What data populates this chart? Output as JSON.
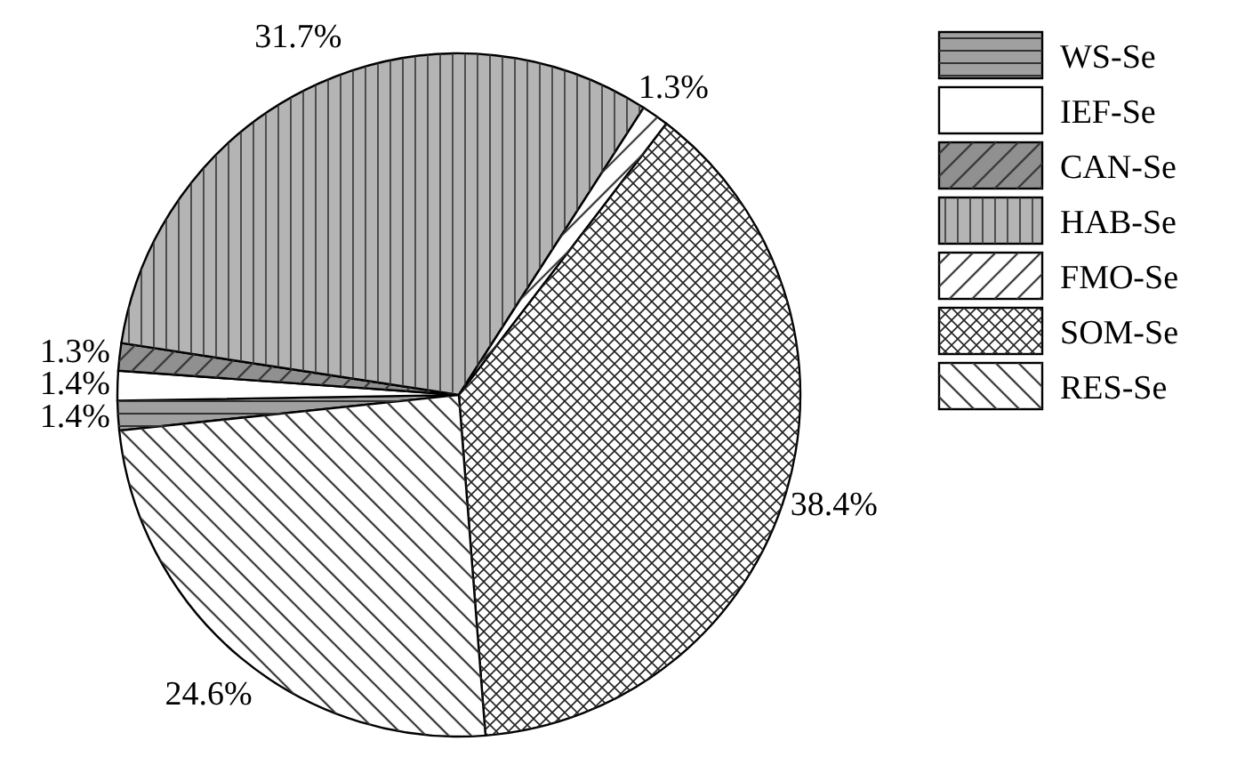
{
  "chart_data": {
    "type": "pie",
    "categories": [
      "WS-Se",
      "IEF-Se",
      "CAN-Se",
      "HAB-Se",
      "FMO-Se",
      "SOM-Se",
      "RES-Se"
    ],
    "values": [
      1.4,
      1.4,
      1.3,
      31.7,
      1.3,
      38.4,
      24.6
    ],
    "value_labels": [
      "1.4%",
      "1.4%",
      "1.3%",
      "31.7%",
      "1.3%",
      "38.4%",
      "24.6%"
    ],
    "colors": [
      "#a0a0a0",
      "#ffffff",
      "#909090",
      "#b4b4b4",
      "#ffffff",
      "#ffffff",
      "#ffffff"
    ],
    "legend": "top right"
  }
}
